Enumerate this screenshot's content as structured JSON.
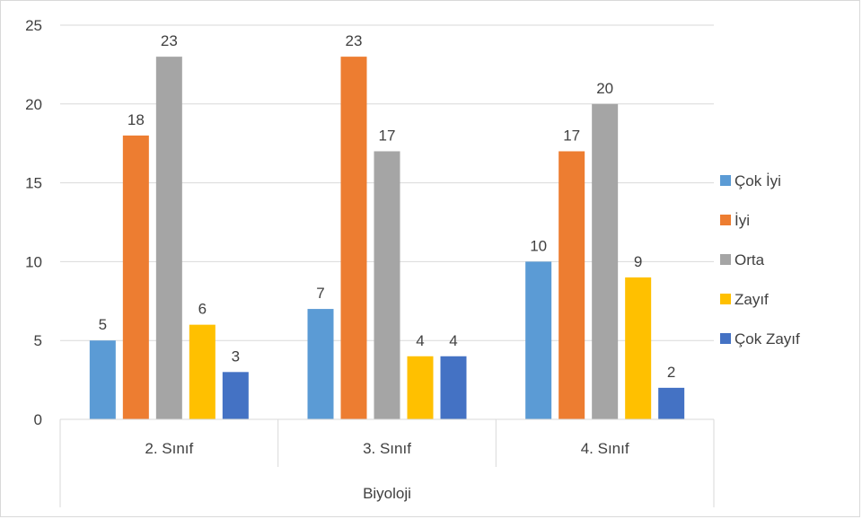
{
  "chart_data": {
    "type": "bar",
    "categories": [
      "2. Sınıf",
      "3. Sınıf",
      "4. Sınıf"
    ],
    "group_label": "Biyoloji",
    "series": [
      {
        "name": "Çok İyi",
        "values": [
          5,
          7,
          10
        ],
        "color": "#5B9BD5"
      },
      {
        "name": "İyi",
        "values": [
          18,
          23,
          17
        ],
        "color": "#ED7D31"
      },
      {
        "name": "Orta",
        "values": [
          23,
          17,
          20
        ],
        "color": "#A5A5A5"
      },
      {
        "name": "Zayıf",
        "values": [
          6,
          4,
          9
        ],
        "color": "#FFC000"
      },
      {
        "name": "Çok Zayıf",
        "values": [
          3,
          4,
          2
        ],
        "color": "#4472C4"
      }
    ],
    "ylim": [
      0,
      25
    ],
    "yticks": [
      0,
      5,
      10,
      15,
      20,
      25
    ],
    "title": "",
    "xlabel": "",
    "ylabel": "",
    "grid": true,
    "data_labels": true,
    "legend_position": "right"
  }
}
